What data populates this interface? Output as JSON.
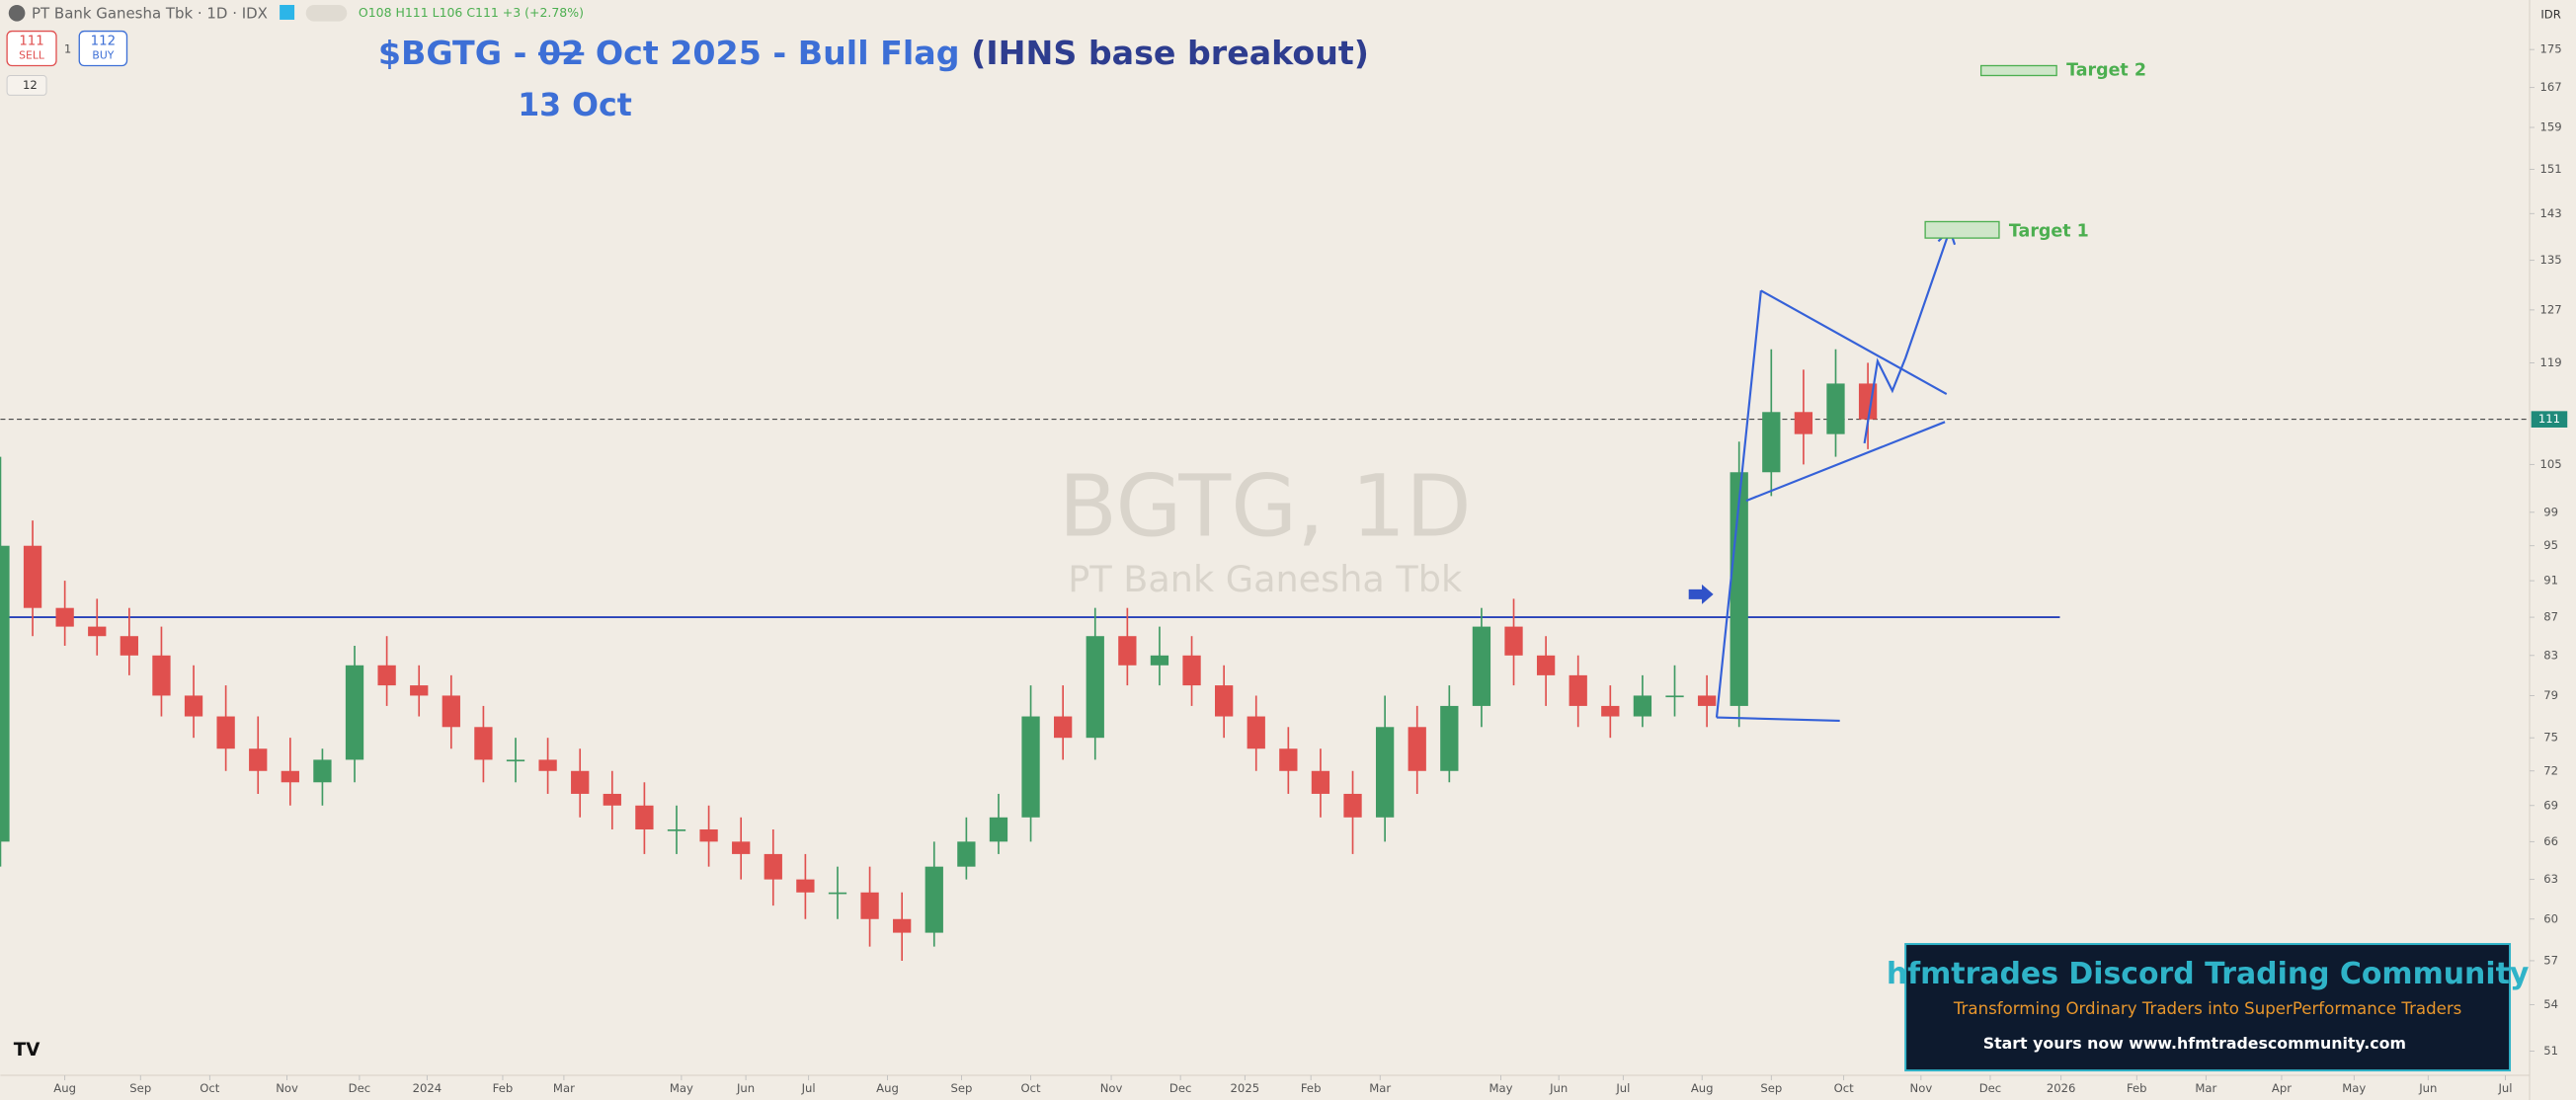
{
  "header": {
    "symbol": "PT Bank Ganesha Tbk",
    "interval": "1D",
    "exchange": "IDX",
    "ohlc": "O108 H111 L106 C111 +3 (+2.78%)",
    "sell_price": "111",
    "sell": "SELL",
    "spread": "1",
    "buy_price": "112",
    "buy": "BUY",
    "indicator_count": "12",
    "currency": "IDR"
  },
  "chart_data": {
    "type": "candlestick",
    "title_prefix": "$BGTG - ",
    "title_struck": "02",
    "title_rest": " Oct 2025 - Bull Flag ",
    "title_note": "(IHNS base breakout)",
    "subtitle": "13 Oct",
    "watermark": "BGTG, 1D",
    "watermark_sub": "PT Bank Ganesha Tbk",
    "target_1": "Target 1",
    "target_2": "Target 2",
    "up_color": "#3f9a63",
    "down_color": "#e0504e",
    "line_color": "#2741b8",
    "log_scale": true,
    "last_price": 111,
    "resistance": 87,
    "x": [
      0,
      2,
      4,
      6,
      8,
      10,
      12,
      14,
      16,
      18,
      20,
      22,
      24,
      26,
      28,
      30,
      32,
      34,
      36,
      38,
      40,
      42,
      44,
      46,
      48,
      50,
      52,
      54,
      56,
      58,
      60,
      62,
      64,
      66,
      68,
      70,
      72,
      74,
      76,
      78,
      80,
      82,
      84,
      86,
      88,
      90,
      92,
      94,
      96,
      98,
      100,
      102,
      104,
      106,
      108,
      110,
      112,
      114,
      116
    ],
    "open": [
      66,
      95,
      88,
      86,
      85,
      83,
      79,
      77,
      74,
      72,
      71,
      73,
      82,
      80,
      79,
      76,
      73,
      73,
      72,
      70,
      69,
      67,
      67,
      66,
      65,
      63,
      62,
      62,
      60,
      59,
      64,
      66,
      68,
      77,
      75,
      85,
      82,
      83,
      80,
      77,
      74,
      72,
      70,
      68,
      76,
      72,
      78,
      86,
      83,
      81,
      78,
      77,
      79,
      79,
      78,
      104,
      112,
      109,
      116
    ],
    "high": [
      106,
      98,
      91,
      89,
      88,
      86,
      82,
      80,
      77,
      75,
      74,
      84,
      85,
      82,
      81,
      78,
      75,
      75,
      74,
      72,
      71,
      69,
      69,
      68,
      67,
      65,
      64,
      64,
      62,
      66,
      68,
      70,
      80,
      80,
      88,
      88,
      86,
      85,
      82,
      79,
      76,
      74,
      72,
      79,
      78,
      80,
      88,
      89,
      85,
      83,
      80,
      81,
      82,
      81,
      108,
      121,
      118,
      121,
      119
    ],
    "low": [
      64,
      85,
      84,
      83,
      81,
      77,
      75,
      72,
      70,
      69,
      69,
      71,
      78,
      77,
      74,
      71,
      71,
      70,
      68,
      67,
      65,
      65,
      64,
      63,
      61,
      60,
      60,
      58,
      57,
      58,
      63,
      65,
      66,
      73,
      73,
      80,
      80,
      78,
      75,
      72,
      70,
      68,
      65,
      66,
      70,
      71,
      76,
      80,
      78,
      76,
      75,
      76,
      77,
      76,
      76,
      101,
      105,
      106,
      107
    ],
    "close": [
      95,
      88,
      86,
      85,
      83,
      79,
      77,
      74,
      72,
      71,
      73,
      82,
      80,
      79,
      76,
      73,
      73,
      72,
      70,
      69,
      67,
      67,
      66,
      65,
      63,
      62,
      62,
      60,
      59,
      64,
      66,
      68,
      77,
      75,
      85,
      82,
      83,
      80,
      77,
      74,
      72,
      70,
      68,
      76,
      72,
      78,
      86,
      83,
      81,
      78,
      77,
      79,
      79,
      78,
      104,
      112,
      109,
      116,
      111
    ],
    "xlim": [
      0,
      157
    ],
    "ylim": [
      50,
      186
    ],
    "yticks": [
      51,
      54,
      57,
      60,
      63,
      66,
      69,
      72,
      75,
      79,
      83,
      87,
      91,
      95,
      99,
      105,
      119,
      127,
      135,
      143,
      151,
      159,
      167,
      175
    ],
    "xticks": [
      {
        "value": 4,
        "label": "Aug"
      },
      {
        "value": 8.7,
        "label": "Sep"
      },
      {
        "value": 13,
        "label": "Oct"
      },
      {
        "value": 17.8,
        "label": "Nov"
      },
      {
        "value": 22.3,
        "label": "Dec"
      },
      {
        "value": 26.5,
        "label": "2024"
      },
      {
        "value": 31.2,
        "label": "Feb"
      },
      {
        "value": 35,
        "label": "Mar"
      },
      {
        "value": 42.3,
        "label": "May"
      },
      {
        "value": 46.3,
        "label": "Jun"
      },
      {
        "value": 50.2,
        "label": "Jul"
      },
      {
        "value": 55.1,
        "label": "Aug"
      },
      {
        "value": 59.7,
        "label": "Sep"
      },
      {
        "value": 64,
        "label": "Oct"
      },
      {
        "value": 69,
        "label": "Nov"
      },
      {
        "value": 73.3,
        "label": "Dec"
      },
      {
        "value": 77.3,
        "label": "2025"
      },
      {
        "value": 81.4,
        "label": "Feb"
      },
      {
        "value": 85.7,
        "label": "Mar"
      },
      {
        "value": 93.2,
        "label": "May"
      },
      {
        "value": 96.8,
        "label": "Jun"
      },
      {
        "value": 100.8,
        "label": "Jul"
      },
      {
        "value": 105.7,
        "label": "Aug"
      },
      {
        "value": 110,
        "label": "Sep"
      },
      {
        "value": 114.5,
        "label": "Oct"
      },
      {
        "value": 119.3,
        "label": "Nov"
      },
      {
        "value": 123.6,
        "label": "Dec"
      },
      {
        "value": 128,
        "label": "2026"
      },
      {
        "value": 132.7,
        "label": "Feb"
      },
      {
        "value": 137,
        "label": "Mar"
      },
      {
        "value": 141.7,
        "label": "Apr"
      },
      {
        "value": 146.2,
        "label": "May"
      },
      {
        "value": 150.8,
        "label": "Jun"
      },
      {
        "value": 155.6,
        "label": "Jul"
      }
    ]
  },
  "banner": {
    "title": "hfmtrades Discord Trading Community",
    "tagline": "Transforming Ordinary Traders into SuperPerformance Traders",
    "cta": "Start yours now www.hfmtradescommunity.com"
  }
}
